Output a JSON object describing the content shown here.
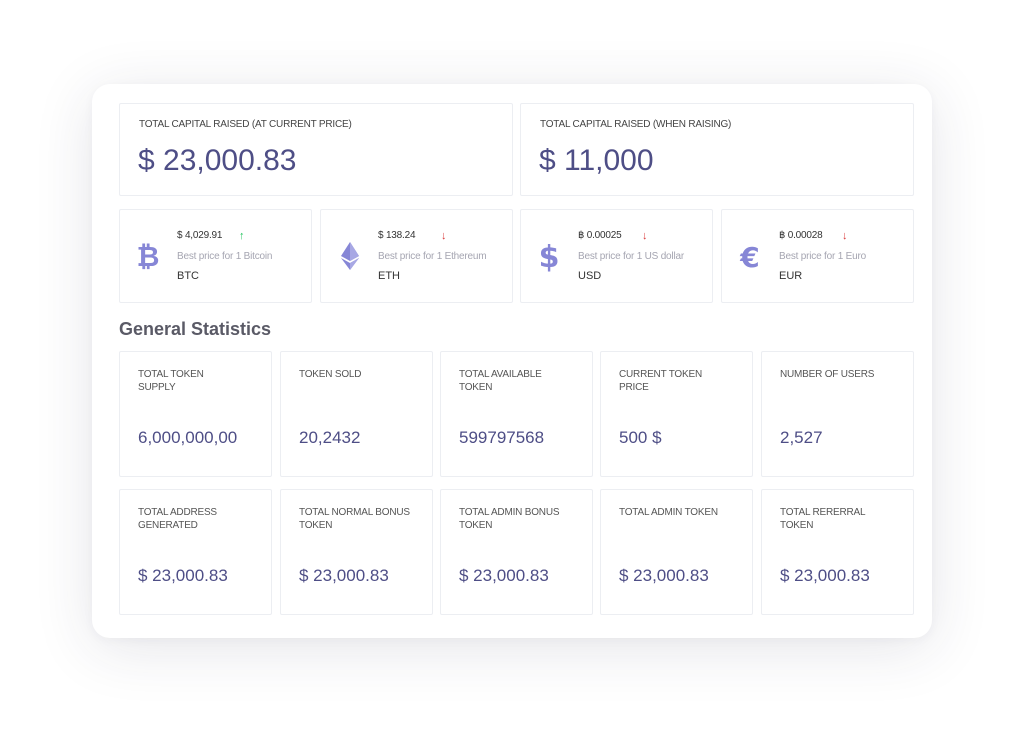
{
  "capital": {
    "current": {
      "label": "TOTAL CAPITAL RAISED (AT CURRENT PRICE)",
      "value": "$ 23,000.83"
    },
    "raising": {
      "label": "TOTAL CAPITAL RAISED (WHEN RAISING)",
      "value": "$ 11,000"
    }
  },
  "coins": [
    {
      "icon": "bitcoin-icon",
      "price": "$ 4,029.91",
      "trend": "up",
      "arrow": "↑",
      "desc": "Best price for 1 Bitcoin",
      "code": "BTC"
    },
    {
      "icon": "ethereum-icon",
      "price": "$ 138.24",
      "trend": "down",
      "arrow": "↓",
      "desc": "Best price for 1 Ethereum",
      "code": "ETH"
    },
    {
      "icon": "dollar-icon",
      "price": "฿ 0.00025",
      "trend": "down",
      "arrow": "↓",
      "desc": "Best price for 1 US dollar",
      "code": "USD"
    },
    {
      "icon": "euro-icon",
      "price": "฿ 0.00028",
      "trend": "down",
      "arrow": "↓",
      "desc": "Best price for 1 Euro",
      "code": "EUR"
    }
  ],
  "stats_title": "General Statistics",
  "stats": [
    {
      "label": "TOTAL TOKEN SUPPLY",
      "value": "6,000,000,00"
    },
    {
      "label": "TOKEN SOLD",
      "value": "20,2432"
    },
    {
      "label": "TOTAL AVAILABLE TOKEN",
      "value": "599797568"
    },
    {
      "label": "CURRENT TOKEN PRICE",
      "value": "500 $"
    },
    {
      "label": "NUMBER OF USERS",
      "value": "2,527"
    },
    {
      "label": "TOTAL ADDRESS GENERATED",
      "value": "$ 23,000.83"
    },
    {
      "label": "TOTAL NORMAL BONUS TOKEN",
      "value": "$ 23,000.83"
    },
    {
      "label": "TOTAL ADMIN BONUS TOKEN",
      "value": "$ 23,000.83"
    },
    {
      "label": "TOTAL ADMIN TOKEN",
      "value": "$ 23,000.83"
    },
    {
      "label": "TOTAL RERERRAL TOKEN",
      "value": "$ 23,000.83"
    }
  ],
  "colors": {
    "accent": "#4e4e86",
    "icon": "#8686d6",
    "up": "#22c55e",
    "down": "#d93a3a"
  }
}
